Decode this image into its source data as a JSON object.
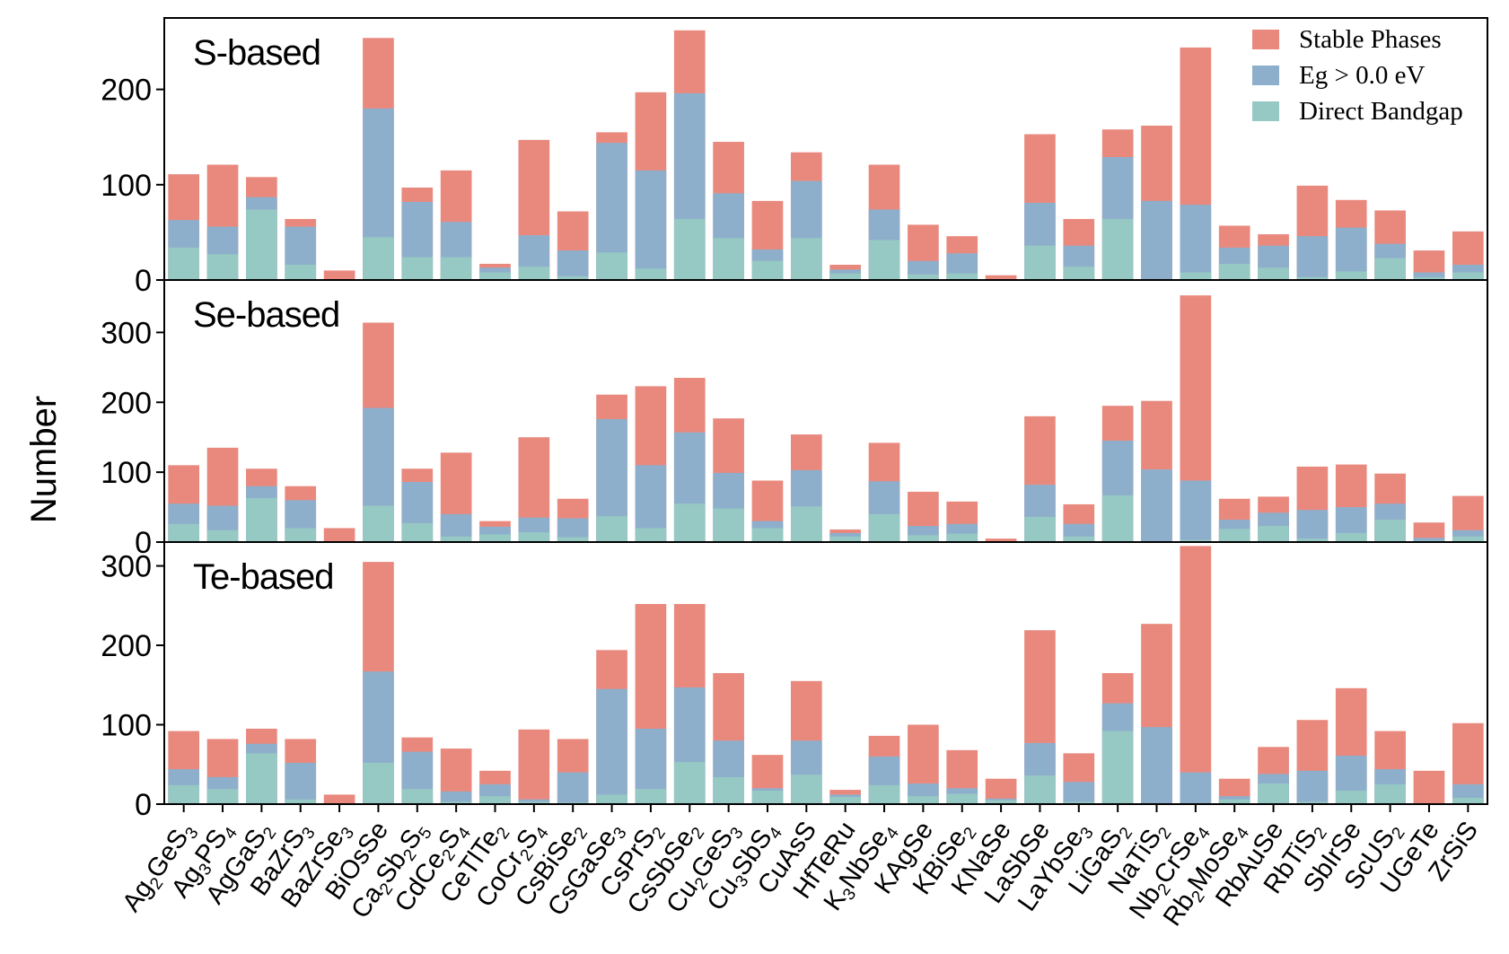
{
  "chart_data": {
    "type": "bar",
    "ylabel": "Number",
    "categories": [
      {
        "id": "Ag2GeS3",
        "parts": [
          [
            "Ag",
            ""
          ],
          [
            "2",
            "sub"
          ],
          [
            "GeS",
            ""
          ],
          [
            "3",
            "sub"
          ]
        ]
      },
      {
        "id": "Ag3PS4",
        "parts": [
          [
            "Ag",
            ""
          ],
          [
            "3",
            "sub"
          ],
          [
            "PS",
            ""
          ],
          [
            "4",
            "sub"
          ]
        ]
      },
      {
        "id": "AgGaS2",
        "parts": [
          [
            "AgGaS",
            ""
          ],
          [
            "2",
            "sub"
          ]
        ]
      },
      {
        "id": "BaZrS3",
        "parts": [
          [
            "BaZrS",
            ""
          ],
          [
            "3",
            "sub"
          ]
        ]
      },
      {
        "id": "BaZrSe3",
        "parts": [
          [
            "BaZrSe",
            ""
          ],
          [
            "3",
            "sub"
          ]
        ]
      },
      {
        "id": "BiOsSe",
        "parts": [
          [
            "BiOsSe",
            ""
          ]
        ]
      },
      {
        "id": "Ca2Sb2S5",
        "parts": [
          [
            "Ca",
            ""
          ],
          [
            "2",
            "sub"
          ],
          [
            "Sb",
            ""
          ],
          [
            "2",
            "sub"
          ],
          [
            "S",
            ""
          ],
          [
            "5",
            "sub"
          ]
        ]
      },
      {
        "id": "CdCe2S4",
        "parts": [
          [
            "CdCe",
            ""
          ],
          [
            "2",
            "sub"
          ],
          [
            "S",
            ""
          ],
          [
            "4",
            "sub"
          ]
        ]
      },
      {
        "id": "CeTlTe2",
        "parts": [
          [
            "CeTlTe",
            ""
          ],
          [
            "2",
            "sub"
          ]
        ]
      },
      {
        "id": "CoCr2S4",
        "parts": [
          [
            "CoCr",
            ""
          ],
          [
            "2",
            "sub"
          ],
          [
            "S",
            ""
          ],
          [
            "4",
            "sub"
          ]
        ]
      },
      {
        "id": "CsBiSe2",
        "parts": [
          [
            "CsBiSe",
            ""
          ],
          [
            "2",
            "sub"
          ]
        ]
      },
      {
        "id": "CsGaSe3",
        "parts": [
          [
            "CsGaSe",
            ""
          ],
          [
            "3",
            "sub"
          ]
        ]
      },
      {
        "id": "CsPrS2",
        "parts": [
          [
            "CsPrS",
            ""
          ],
          [
            "2",
            "sub"
          ]
        ]
      },
      {
        "id": "CsSbSe2",
        "parts": [
          [
            "CsSbSe",
            ""
          ],
          [
            "2",
            "sub"
          ]
        ]
      },
      {
        "id": "Cu2GeS3",
        "parts": [
          [
            "Cu",
            ""
          ],
          [
            "2",
            "sub"
          ],
          [
            "GeS",
            ""
          ],
          [
            "3",
            "sub"
          ]
        ]
      },
      {
        "id": "Cu3SbS4",
        "parts": [
          [
            "Cu",
            ""
          ],
          [
            "3",
            "sub"
          ],
          [
            "SbS",
            ""
          ],
          [
            "4",
            "sub"
          ]
        ]
      },
      {
        "id": "CuAsS",
        "parts": [
          [
            "CuAsS",
            ""
          ]
        ]
      },
      {
        "id": "HfTeRu",
        "parts": [
          [
            "HfTeRu",
            ""
          ]
        ]
      },
      {
        "id": "K3NbSe4",
        "parts": [
          [
            "K",
            ""
          ],
          [
            "3",
            "sub"
          ],
          [
            "NbSe",
            ""
          ],
          [
            "4",
            "sub"
          ]
        ]
      },
      {
        "id": "KAgSe",
        "parts": [
          [
            "KAgSe",
            ""
          ]
        ]
      },
      {
        "id": "KBiSe2",
        "parts": [
          [
            "KBiSe",
            ""
          ],
          [
            "2",
            "sub"
          ]
        ]
      },
      {
        "id": "KNaSe",
        "parts": [
          [
            "KNaSe",
            ""
          ]
        ]
      },
      {
        "id": "LaSbSe",
        "parts": [
          [
            "LaSbSe",
            ""
          ]
        ]
      },
      {
        "id": "LaYbSe3",
        "parts": [
          [
            "LaYbSe",
            ""
          ],
          [
            "3",
            "sub"
          ]
        ]
      },
      {
        "id": "LiGaS2",
        "parts": [
          [
            "LiGaS",
            ""
          ],
          [
            "2",
            "sub"
          ]
        ]
      },
      {
        "id": "NaTiS2",
        "parts": [
          [
            "NaTiS",
            ""
          ],
          [
            "2",
            "sub"
          ]
        ]
      },
      {
        "id": "Nb2CrSe4",
        "parts": [
          [
            "Nb",
            ""
          ],
          [
            "2",
            "sub"
          ],
          [
            "CrSe",
            ""
          ],
          [
            "4",
            "sub"
          ]
        ]
      },
      {
        "id": "Rb2MoSe4",
        "parts": [
          [
            "Rb",
            ""
          ],
          [
            "2",
            "sub"
          ],
          [
            "MoSe",
            ""
          ],
          [
            "4",
            "sub"
          ]
        ]
      },
      {
        "id": "RbAuSe",
        "parts": [
          [
            "RbAuSe",
            ""
          ]
        ]
      },
      {
        "id": "RbTiS2",
        "parts": [
          [
            "RbTiS",
            ""
          ],
          [
            "2",
            "sub"
          ]
        ]
      },
      {
        "id": "SbIrSe",
        "parts": [
          [
            "SbIrSe",
            ""
          ]
        ]
      },
      {
        "id": "ScUS2",
        "parts": [
          [
            "ScUS",
            ""
          ],
          [
            "2",
            "sub"
          ]
        ]
      },
      {
        "id": "UGeTe",
        "parts": [
          [
            "UGeTe",
            ""
          ]
        ]
      },
      {
        "id": "ZrSiS",
        "parts": [
          [
            "ZrSiS",
            ""
          ]
        ]
      }
    ],
    "legend": {
      "placement": "top-right",
      "entries": [
        {
          "name": "Stable Phases",
          "color": "#e9897e"
        },
        {
          "name": "Eg > 0.0 eV",
          "color": "#8eafcb"
        },
        {
          "name": "Direct Bandgap",
          "color": "#96c8c4"
        }
      ]
    },
    "panels": [
      {
        "title": "S-based",
        "ylim": [
          0,
          275
        ],
        "yticks": [
          0,
          100,
          200
        ],
        "series": [
          {
            "name": "Stable Phases",
            "values": [
              111,
              121,
              108,
              64,
              10,
              254,
              97,
              115,
              17,
              147,
              72,
              155,
              197,
              262,
              145,
              83,
              134,
              16,
              121,
              58,
              46,
              5,
              153,
              64,
              158,
              162,
              244,
              57,
              48,
              99,
              84,
              73,
              31,
              51
            ]
          },
          {
            "name": "Eg > 0.0 eV",
            "values": [
              63,
              56,
              87,
              56,
              0,
              180,
              82,
              61,
              13,
              47,
              31,
              144,
              115,
              196,
              91,
              32,
              104,
              11,
              74,
              20,
              28,
              0,
              81,
              36,
              129,
              83,
              79,
              34,
              36,
              46,
              55,
              38,
              8,
              16
            ]
          },
          {
            "name": "Direct Bandgap",
            "values": [
              34,
              27,
              74,
              16,
              0,
              45,
              24,
              24,
              8,
              14,
              4,
              29,
              12,
              64,
              44,
              20,
              44,
              7,
              42,
              6,
              7,
              0,
              36,
              14,
              64,
              0,
              8,
              17,
              13,
              3,
              9,
              23,
              3,
              8
            ]
          }
        ]
      },
      {
        "title": "Se-based",
        "ylim": [
          0,
          375
        ],
        "yticks": [
          0,
          100,
          200,
          300
        ],
        "series": [
          {
            "name": "Stable Phases",
            "values": [
              110,
              135,
              105,
              80,
              20,
              314,
              105,
              128,
              30,
              150,
              62,
              211,
              223,
              235,
              177,
              88,
              154,
              18,
              142,
              72,
              58,
              5,
              180,
              54,
              195,
              202,
              353,
              62,
              65,
              108,
              111,
              98,
              28,
              66
            ]
          },
          {
            "name": "Eg > 0.0 eV",
            "values": [
              55,
              52,
              80,
              60,
              0,
              192,
              86,
              40,
              22,
              35,
              34,
              176,
              110,
              157,
              99,
              30,
              103,
              13,
              87,
              23,
              26,
              0,
              82,
              26,
              145,
              104,
              88,
              32,
              42,
              46,
              50,
              55,
              6,
              17
            ]
          },
          {
            "name": "Direct Bandgap",
            "values": [
              26,
              17,
              63,
              20,
              0,
              52,
              27,
              8,
              11,
              14,
              7,
              37,
              20,
              55,
              48,
              20,
              51,
              8,
              40,
              10,
              12,
              0,
              36,
              8,
              67,
              0,
              3,
              19,
              23,
              5,
              13,
              32,
              2,
              8
            ]
          }
        ]
      },
      {
        "title": "Te-based",
        "ylim": [
          0,
          330
        ],
        "yticks": [
          0,
          100,
          200,
          300
        ],
        "series": [
          {
            "name": "Stable Phases",
            "values": [
              92,
              82,
              95,
              82,
              12,
              305,
              84,
              70,
              42,
              94,
              82,
              194,
              252,
              252,
              165,
              62,
              155,
              18,
              86,
              100,
              68,
              32,
              219,
              64,
              165,
              227,
              325,
              32,
              72,
              106,
              146,
              92,
              42,
              102
            ]
          },
          {
            "name": "Eg > 0.0 eV",
            "values": [
              44,
              34,
              76,
              52,
              0,
              167,
              66,
              16,
              25,
              6,
              40,
              145,
              95,
              147,
              80,
              20,
              80,
              12,
              60,
              26,
              20,
              7,
              77,
              28,
              127,
              97,
              40,
              10,
              38,
              42,
              61,
              44,
              0,
              25
            ]
          },
          {
            "name": "Direct Bandgap",
            "values": [
              24,
              19,
              64,
              6,
              0,
              52,
              19,
              3,
              10,
              3,
              2,
              12,
              19,
              53,
              34,
              17,
              37,
              9,
              24,
              10,
              13,
              5,
              36,
              3,
              92,
              0,
              0,
              6,
              26,
              3,
              17,
              25,
              0,
              8
            ]
          }
        ]
      }
    ]
  }
}
